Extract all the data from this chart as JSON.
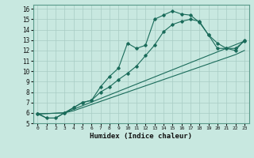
{
  "xlabel": "Humidex (Indice chaleur)",
  "bg_color": "#c8e8e0",
  "grid_color": "#a8ccc4",
  "line_color": "#1a6b5a",
  "xlim": [
    -0.5,
    23.5
  ],
  "ylim": [
    5,
    16.4
  ],
  "xticks": [
    0,
    1,
    2,
    3,
    4,
    5,
    6,
    7,
    8,
    9,
    10,
    11,
    12,
    13,
    14,
    15,
    16,
    17,
    18,
    19,
    20,
    21,
    22,
    23
  ],
  "yticks": [
    5,
    6,
    7,
    8,
    9,
    10,
    11,
    12,
    13,
    14,
    15,
    16
  ],
  "line1_x": [
    0,
    1,
    2,
    3,
    4,
    5,
    6,
    7,
    8,
    9,
    10,
    11,
    12,
    13,
    14,
    15,
    16,
    17,
    18,
    19,
    20,
    21,
    22,
    23
  ],
  "line1_y": [
    6.0,
    5.5,
    5.5,
    6.0,
    6.2,
    6.5,
    6.8,
    7.1,
    7.4,
    7.7,
    8.0,
    8.3,
    8.6,
    8.9,
    9.2,
    9.5,
    9.8,
    10.1,
    10.4,
    10.7,
    11.0,
    11.3,
    11.6,
    12.0
  ],
  "line2_x": [
    0,
    1,
    2,
    3,
    4,
    5,
    6,
    7,
    8,
    9,
    10,
    11,
    12,
    13,
    14,
    15,
    16,
    17,
    18,
    19,
    20,
    21,
    22,
    23
  ],
  "line2_y": [
    5.9,
    5.5,
    5.5,
    6.0,
    6.5,
    7.0,
    7.2,
    8.5,
    9.5,
    10.3,
    12.7,
    12.2,
    12.5,
    15.0,
    15.4,
    15.8,
    15.5,
    15.4,
    14.7,
    13.5,
    12.2,
    12.2,
    12.2,
    12.9
  ],
  "line3_x": [
    0,
    3,
    4,
    5,
    6,
    7,
    8,
    9,
    10,
    11,
    12,
    13,
    14,
    15,
    16,
    17,
    18,
    19,
    20,
    21,
    22,
    23
  ],
  "line3_y": [
    5.9,
    6.0,
    6.5,
    7.0,
    7.2,
    8.0,
    8.5,
    9.2,
    9.8,
    10.5,
    11.5,
    12.5,
    13.8,
    14.5,
    14.8,
    15.0,
    14.8,
    13.5,
    12.7,
    12.2,
    12.0,
    13.0
  ],
  "line4_x": [
    0,
    3,
    23
  ],
  "line4_y": [
    5.9,
    6.0,
    12.9
  ]
}
